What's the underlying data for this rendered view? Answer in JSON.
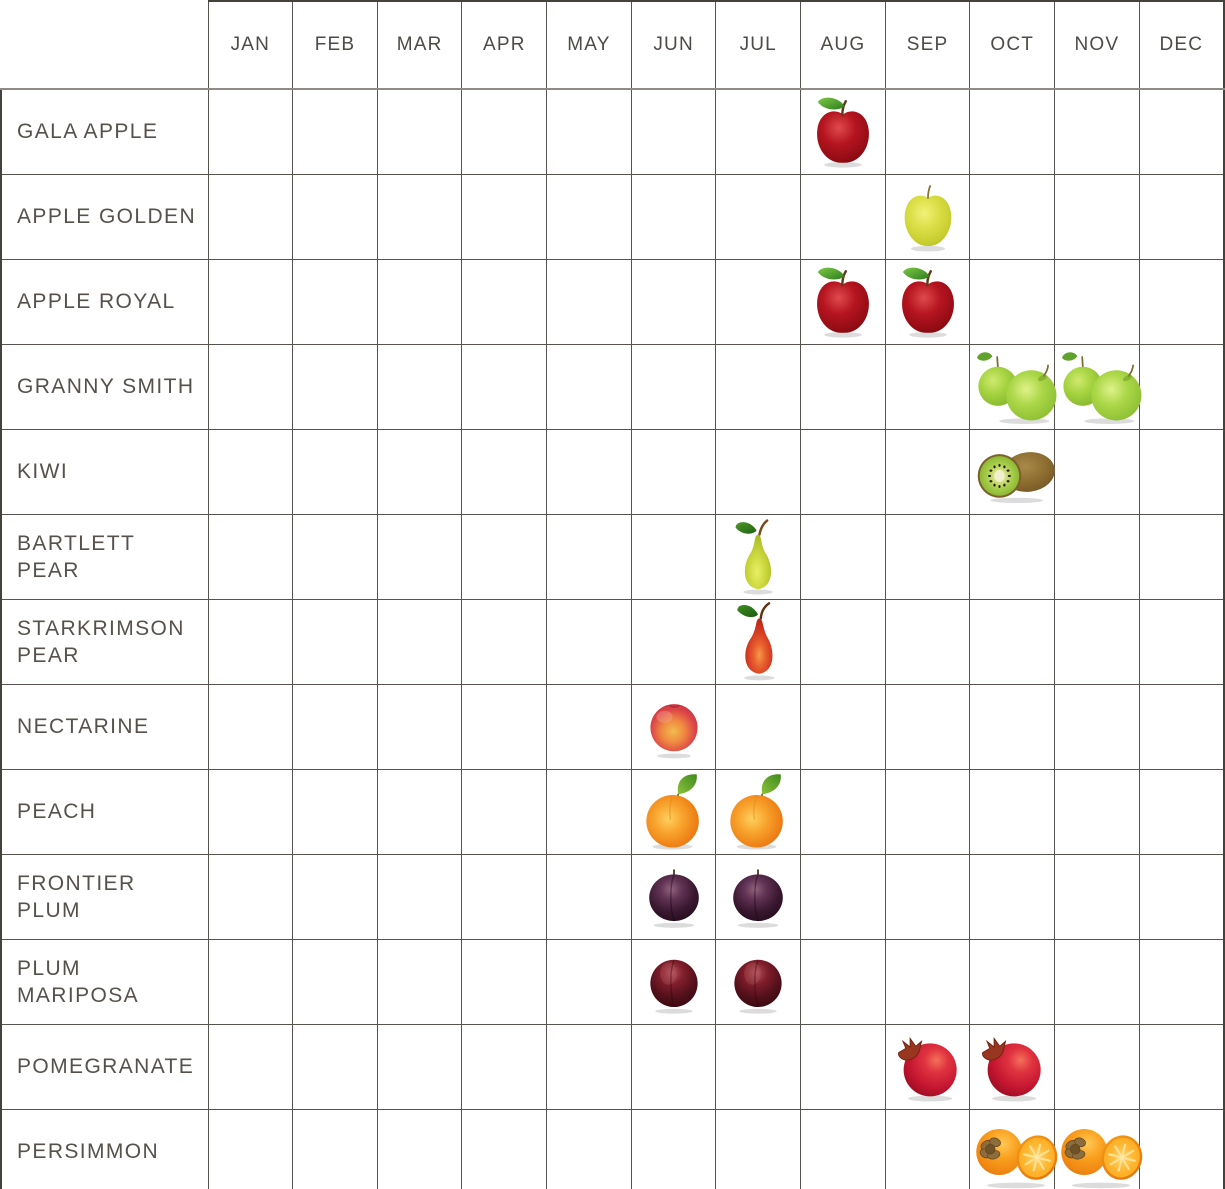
{
  "colors": {
    "background": "#ffffff",
    "grid_line": "#57544f",
    "outer_border": "#45423d",
    "header_underline": "#8e8b86",
    "month_text": "#4e4a45",
    "label_text": "#56514b"
  },
  "chart_data": {
    "type": "table",
    "description": "Fruit harvest seasonality calendar: rows are fruit varieties, columns are months, a fruit image marks each in-season month",
    "columns": [
      "JAN",
      "FEB",
      "MAR",
      "APR",
      "MAY",
      "JUN",
      "JUL",
      "AUG",
      "SEP",
      "OCT",
      "NOV",
      "DEC"
    ],
    "rows": [
      {
        "label": "GALA APPLE",
        "fruit_icon": "red-apple-icon",
        "in_season": [
          "AUG"
        ]
      },
      {
        "label": "APPLE GOLDEN",
        "fruit_icon": "golden-apple-icon",
        "in_season": [
          "SEP"
        ]
      },
      {
        "label": "APPLE ROYAL",
        "fruit_icon": "red-apple-icon",
        "in_season": [
          "AUG",
          "SEP"
        ]
      },
      {
        "label": "GRANNY SMITH",
        "fruit_icon": "granny-smith-apples-icon",
        "in_season": [
          "OCT",
          "NOV"
        ]
      },
      {
        "label": "KIWI",
        "fruit_icon": "kiwi-icon",
        "in_season": [
          "OCT"
        ]
      },
      {
        "label": "BARTLETT PEAR",
        "fruit_icon": "green-pear-icon",
        "in_season": [
          "JUL"
        ]
      },
      {
        "label": "STARKRIMSON PEAR",
        "fruit_icon": "red-pear-icon",
        "in_season": [
          "JUL"
        ]
      },
      {
        "label": "NECTARINE",
        "fruit_icon": "nectarine-icon",
        "in_season": [
          "JUN"
        ]
      },
      {
        "label": "PEACH",
        "fruit_icon": "peach-icon",
        "in_season": [
          "JUN",
          "JUL"
        ]
      },
      {
        "label": "FRONTIER PLUM",
        "fruit_icon": "dark-plum-icon",
        "in_season": [
          "JUN",
          "JUL"
        ]
      },
      {
        "label": "PLUM MARIPOSA",
        "fruit_icon": "red-plum-icon",
        "in_season": [
          "JUN",
          "JUL"
        ]
      },
      {
        "label": "POMEGRANATE",
        "fruit_icon": "pomegranate-icon",
        "in_season": [
          "SEP",
          "OCT"
        ]
      },
      {
        "label": "PERSIMMON",
        "fruit_icon": "persimmon-icon",
        "in_season": [
          "OCT",
          "NOV"
        ]
      }
    ]
  }
}
